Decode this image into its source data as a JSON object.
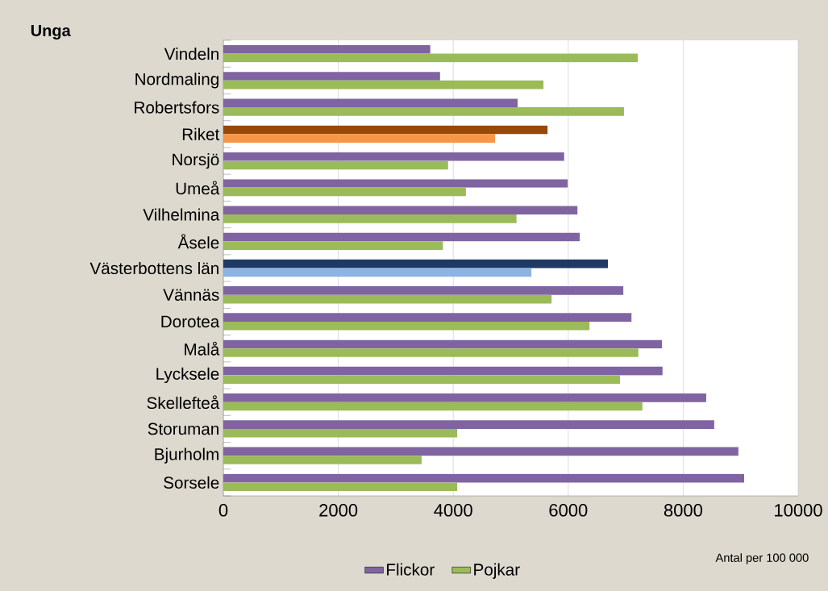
{
  "chart_data": {
    "type": "bar",
    "orientation": "horizontal",
    "title": "Unga",
    "categories": [
      "Vindeln",
      "Nordmaling",
      "Robertsfors",
      "Riket",
      "Norsjö",
      "Umeå",
      "Vilhelmina",
      "Åsele",
      "Västerbottens län",
      "Vännäs",
      "Dorotea",
      "Malå",
      "Lycksele",
      "Skellefteå",
      "Storuman",
      "Bjurholm",
      "Sorsele"
    ],
    "series": [
      {
        "name": "Flickor",
        "color": "#8064a2",
        "colors": [
          "#8064a2",
          "#8064a2",
          "#8064a2",
          "#984807",
          "#8064a2",
          "#8064a2",
          "#8064a2",
          "#8064a2",
          "#1f3864",
          "#8064a2",
          "#8064a2",
          "#8064a2",
          "#8064a2",
          "#8064a2",
          "#8064a2",
          "#8064a2",
          "#8064a2"
        ],
        "values": [
          3600,
          3770,
          5120,
          5640,
          5930,
          5990,
          6160,
          6200,
          6690,
          6960,
          7100,
          7630,
          7640,
          8400,
          8540,
          8960,
          9060
        ]
      },
      {
        "name": "Pojkar",
        "color": "#9bbb59",
        "colors": [
          "#9bbb59",
          "#9bbb59",
          "#9bbb59",
          "#f79646",
          "#9bbb59",
          "#9bbb59",
          "#9bbb59",
          "#9bbb59",
          "#8db3e2",
          "#9bbb59",
          "#9bbb59",
          "#9bbb59",
          "#9bbb59",
          "#9bbb59",
          "#9bbb59",
          "#9bbb59",
          "#9bbb59"
        ],
        "values": [
          7210,
          5570,
          6970,
          4730,
          3910,
          4220,
          5100,
          3820,
          5360,
          5710,
          6370,
          7220,
          6900,
          7290,
          4070,
          3450,
          4070
        ]
      }
    ],
    "xlim": [
      0,
      10000
    ],
    "xticks": [
      0,
      2000,
      4000,
      6000,
      8000,
      10000
    ],
    "grid": "x",
    "legend": "bottom",
    "annotations": [
      "Antal per 100 000"
    ]
  }
}
